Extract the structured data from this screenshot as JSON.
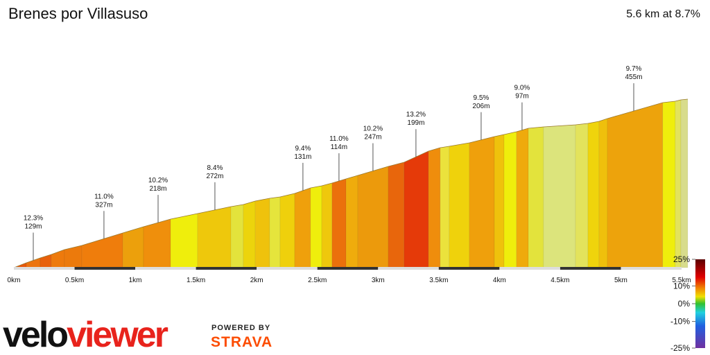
{
  "header": {
    "title": "Brenes por Villasuso",
    "summary": "5.6 km at 8.7%"
  },
  "chart_data": {
    "type": "area",
    "x": [
      0,
      0.103,
      0.217,
      0.308,
      0.417,
      0.56,
      0.897,
      1.068,
      1.291,
      1.513,
      1.788,
      1.89,
      1.988,
      2.107,
      2.193,
      2.313,
      2.444,
      2.536,
      2.621,
      2.736,
      2.833,
      3.084,
      3.215,
      3.415,
      3.512,
      3.586,
      3.752,
      3.958,
      4.038,
      4.14,
      4.238,
      4.363,
      4.626,
      4.729,
      4.82,
      4.889,
      5.345,
      5.448,
      5.494,
      5.551
    ],
    "elevation": [
      0,
      14,
      28,
      38,
      52,
      64,
      100,
      118,
      140,
      156,
      176,
      182,
      192,
      200,
      204,
      214,
      230,
      236,
      244,
      256,
      266,
      292,
      304,
      336,
      346,
      350,
      360,
      378,
      384,
      392,
      402,
      406,
      412,
      416,
      422,
      430,
      476,
      480,
      484,
      486
    ],
    "segment_colors": [
      "#e6580c",
      "#ec7410",
      "#e8600c",
      "#ee7a0c",
      "#ec7a0c",
      "#ef7d0c",
      "#eca00c",
      "#ef8f0c",
      "#efee0c",
      "#eec80c",
      "#e3e33c",
      "#ecd40c",
      "#efc20c",
      "#e5e53c",
      "#efd00c",
      "#efa00c",
      "#efee0c",
      "#efc80c",
      "#eb700c",
      "#efac0c",
      "#ec9a0c",
      "#e8660c",
      "#e53a09",
      "#ef8d0c",
      "#ebe23c",
      "#efd20c",
      "#efa00c",
      "#efc20c",
      "#efee0c",
      "#efaa0c",
      "#e3e33c",
      "#dce47c",
      "#e3e35c",
      "#efd40c",
      "#efc00c",
      "#eda30c",
      "#efee0c",
      "#e3e35c",
      "#d8dc8c"
    ],
    "xlim": [
      0,
      5.5
    ],
    "ylim": [
      0,
      500
    ],
    "xticks": [
      {
        "value": 0,
        "label": "0km"
      },
      {
        "value": 0.5,
        "label": "0.5km"
      },
      {
        "value": 1,
        "label": "1km"
      },
      {
        "value": 1.5,
        "label": "1.5km"
      },
      {
        "value": 2,
        "label": "2km"
      },
      {
        "value": 2.5,
        "label": "2.5km"
      },
      {
        "value": 3,
        "label": "3km"
      },
      {
        "value": 3.5,
        "label": "3.5km"
      },
      {
        "value": 4,
        "label": "4km"
      },
      {
        "value": 4.5,
        "label": "4.5km"
      },
      {
        "value": 5,
        "label": "5km"
      },
      {
        "value": 5.5,
        "label": "5.5km"
      }
    ],
    "annotations": [
      {
        "x": 0.16,
        "grade": "12.3%",
        "length": "129m"
      },
      {
        "x": 0.742,
        "grade": "11.0%",
        "length": "327m"
      },
      {
        "x": 1.188,
        "grade": "10.2%",
        "length": "218m"
      },
      {
        "x": 1.656,
        "grade": "8.4%",
        "length": "272m"
      },
      {
        "x": 2.381,
        "grade": "9.4%",
        "length": "131m"
      },
      {
        "x": 2.678,
        "grade": "11.0%",
        "length": "114m"
      },
      {
        "x": 2.958,
        "grade": "10.2%",
        "length": "247m"
      },
      {
        "x": 3.312,
        "grade": "13.2%",
        "length": "199m"
      },
      {
        "x": 3.849,
        "grade": "9.5%",
        "length": "206m"
      },
      {
        "x": 4.186,
        "grade": "9.0%",
        "length": "97m"
      },
      {
        "x": 5.106,
        "grade": "9.7%",
        "length": "455m"
      }
    ],
    "grade_legend": {
      "lim": [
        -25,
        25
      ],
      "ticks": [
        {
          "value": 25,
          "label": "25%"
        },
        {
          "value": 10,
          "label": "10%"
        },
        {
          "value": 0,
          "label": "0%"
        },
        {
          "value": -10,
          "label": "-10%"
        },
        {
          "value": -25,
          "label": "-25%"
        }
      ]
    }
  },
  "branding": {
    "logo_prefix": "velo",
    "logo_suffix": "viewer",
    "powered_by": "POWERED BY",
    "partner": "STRAVA"
  }
}
